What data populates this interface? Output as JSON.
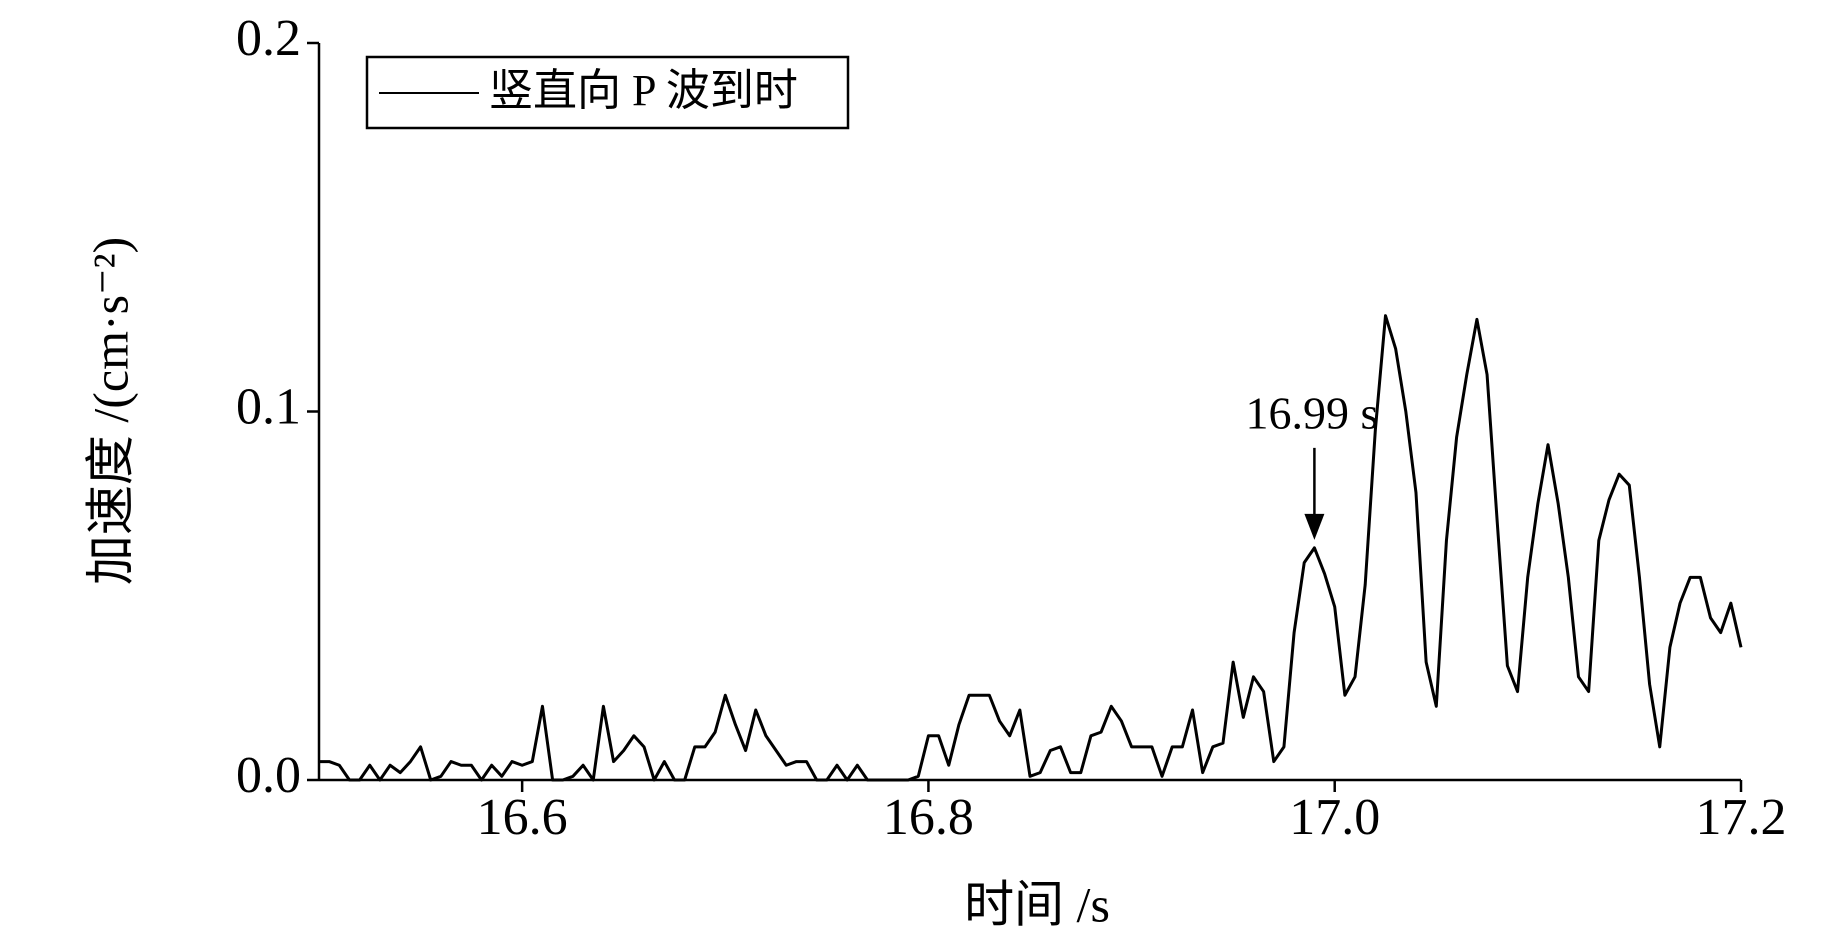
{
  "chart_data": {
    "type": "line",
    "x_label": "时间 /s",
    "y_label": "加速度 /(cm·s⁻²)",
    "xlim": [
      16.5,
      17.2
    ],
    "ylim": [
      0,
      0.2
    ],
    "xticks": [
      16.6,
      16.8,
      {
        "value": 17,
        "label": "17.0"
      },
      17.2
    ],
    "yticks": [
      {
        "value": 0,
        "label": "0.0"
      },
      0.1,
      0.2
    ],
    "legend": "upper left",
    "annotation": {
      "text": "16.99 s",
      "x": 16.99,
      "y": 0.063
    },
    "x": [
      16.5,
      16.505,
      16.51,
      16.515,
      16.52,
      16.525,
      16.53,
      16.535,
      16.54,
      16.545,
      16.55,
      16.555,
      16.56,
      16.565,
      16.57,
      16.575,
      16.58,
      16.585,
      16.59,
      16.595,
      16.6,
      16.605,
      16.61,
      16.615,
      16.62,
      16.625,
      16.63,
      16.635,
      16.64,
      16.645,
      16.65,
      16.655,
      16.66,
      16.665,
      16.67,
      16.675,
      16.68,
      16.685,
      16.69,
      16.695,
      16.7,
      16.705,
      16.71,
      16.715,
      16.72,
      16.725,
      16.73,
      16.735,
      16.74,
      16.745,
      16.75,
      16.755,
      16.76,
      16.765,
      16.77,
      16.775,
      16.78,
      16.785,
      16.79,
      16.795,
      16.8,
      16.805,
      16.81,
      16.815,
      16.82,
      16.825,
      16.83,
      16.835,
      16.84,
      16.845,
      16.85,
      16.855,
      16.86,
      16.865,
      16.87,
      16.875,
      16.88,
      16.885,
      16.89,
      16.895,
      16.9,
      16.905,
      16.91,
      16.915,
      16.92,
      16.925,
      16.93,
      16.935,
      16.94,
      16.945,
      16.95,
      16.955,
      16.96,
      16.965,
      16.97,
      16.975,
      16.98,
      16.985,
      16.99,
      16.995,
      17.0,
      17.005,
      17.01,
      17.015,
      17.02,
      17.025,
      17.03,
      17.035,
      17.04,
      17.045,
      17.05,
      17.055,
      17.06,
      17.065,
      17.07,
      17.075,
      17.08,
      17.085,
      17.09,
      17.095,
      17.1,
      17.105,
      17.11,
      17.115,
      17.12,
      17.125,
      17.13,
      17.135,
      17.14,
      17.145,
      17.15,
      17.155,
      17.16,
      17.165,
      17.17,
      17.175,
      17.18,
      17.185,
      17.19,
      17.195,
      17.2
    ],
    "series": [
      {
        "name": "竖直向 P 波到时",
        "color": "#000000",
        "values": [
          0.005,
          0.005,
          0.004,
          0,
          0,
          0.004,
          0,
          0.004,
          0.002,
          0.005,
          0.009,
          0,
          0.001,
          0.005,
          0.004,
          0.004,
          0,
          0.004,
          0.001,
          0.005,
          0.004,
          0.005,
          0.02,
          0,
          0,
          0.001,
          0.004,
          0,
          0.02,
          0.005,
          0.008,
          0.012,
          0.009,
          0,
          0.005,
          0,
          0,
          0.009,
          0.009,
          0.013,
          0.023,
          0.015,
          0.008,
          0.019,
          0.012,
          0.008,
          0.004,
          0.005,
          0.005,
          0,
          0,
          0.004,
          0,
          0.004,
          0,
          0,
          0,
          0,
          0,
          0.001,
          0.012,
          0.012,
          0.004,
          0.015,
          0.023,
          0.023,
          0.023,
          0.016,
          0.012,
          0.019,
          0.001,
          0.002,
          0.008,
          0.009,
          0.002,
          0.002,
          0.012,
          0.013,
          0.02,
          0.016,
          0.009,
          0.009,
          0.009,
          0.001,
          0.009,
          0.009,
          0.019,
          0.002,
          0.009,
          0.01,
          0.032,
          0.017,
          0.028,
          0.024,
          0.005,
          0.009,
          0.04,
          0.059,
          0.063,
          0.056,
          0.047,
          0.023,
          0.028,
          0.053,
          0.095,
          0.126,
          0.117,
          0.1,
          0.078,
          0.032,
          0.02,
          0.065,
          0.093,
          0.11,
          0.125,
          0.11,
          0.07,
          0.031,
          0.024,
          0.055,
          0.075,
          0.091,
          0.075,
          0.055,
          0.028,
          0.024,
          0.065,
          0.076,
          0.083,
          0.08,
          0.055,
          0.026,
          0.009,
          0.036,
          0.048,
          0.055,
          0.055,
          0.044,
          0.04,
          0.048,
          0.036
        ]
      }
    ]
  }
}
